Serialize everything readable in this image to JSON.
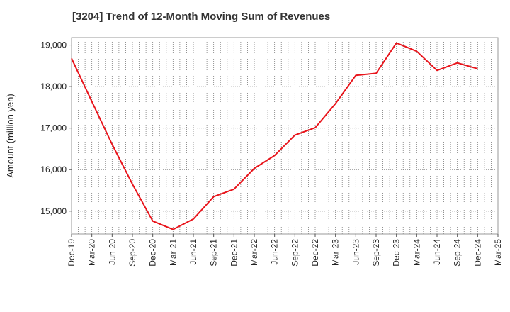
{
  "chart_data": {
    "type": "line",
    "title": "[3204]  Trend of 12-Month Moving Sum of Revenues",
    "ylabel": "Amount (million yen)",
    "xlabel": "",
    "ylim": [
      14450,
      19180
    ],
    "yticks": [
      15000,
      16000,
      17000,
      18000,
      19000
    ],
    "ytick_labels": [
      "15,000",
      "16,000",
      "17,000",
      "18,000",
      "19,000"
    ],
    "x_categories": [
      "Dec-19",
      "Mar-20",
      "Jun-20",
      "Sep-20",
      "Dec-20",
      "Mar-21",
      "Jun-21",
      "Sep-21",
      "Dec-21",
      "Mar-22",
      "Jun-22",
      "Sep-22",
      "Dec-22",
      "Mar-23",
      "Jun-23",
      "Sep-23",
      "Dec-23",
      "Mar-24",
      "Jun-24",
      "Sep-24",
      "Dec-24",
      "Mar-25"
    ],
    "grid": true,
    "series": [
      {
        "name": "",
        "color": "#e8141b",
        "values": [
          18680,
          17640,
          16610,
          15650,
          14760,
          14560,
          14810,
          15350,
          15530,
          16030,
          16340,
          16830,
          17010,
          17590,
          18270,
          18320,
          19050,
          18850,
          18390,
          18570,
          18430,
          null
        ]
      }
    ]
  }
}
